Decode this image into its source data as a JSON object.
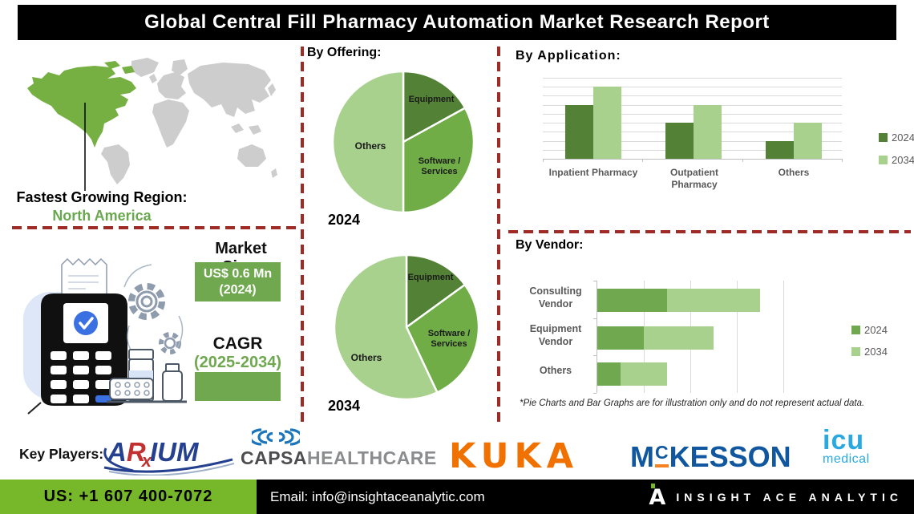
{
  "title": "Global Central Fill Pharmacy Automation Market Research Report",
  "region": {
    "label": "Fastest Growing Region:",
    "value": "North America"
  },
  "sections": {
    "offering": "By Offering:",
    "application": "By  Application:",
    "vendor": "By Vendor:"
  },
  "market_size": {
    "heading": "Market Size:",
    "value": "US$ 0.6 Mn",
    "value_year": "(2024)",
    "cagr_heading": "CAGR",
    "cagr_period": "(2025-2034)"
  },
  "chart_data": [
    {
      "type": "pie",
      "name": "by-offering-2024",
      "year_caption": "2024",
      "labels": [
        "Equipment",
        "Software / Services",
        "Others"
      ],
      "values": [
        17,
        33,
        50
      ],
      "colors": [
        "#538135",
        "#70AD47",
        "#A9D18E"
      ]
    },
    {
      "type": "pie",
      "name": "by-offering-2034",
      "year_caption": "2034",
      "labels": [
        "Equipment",
        "Software / Services",
        "Others"
      ],
      "values": [
        15,
        28,
        57
      ],
      "colors": [
        "#538135",
        "#70AD47",
        "#A9D18E"
      ]
    },
    {
      "type": "bar",
      "name": "by-application",
      "title": "By Application:",
      "categories": [
        "Inpatient Pharmacy",
        "Outpatient Pharmacy",
        "Others"
      ],
      "series": [
        {
          "name": "2024",
          "color": "#538135",
          "values": [
            6,
            4,
            2
          ]
        },
        {
          "name": "2034",
          "color": "#A9D18E",
          "values": [
            8,
            6,
            4
          ]
        }
      ],
      "ylim": [
        0,
        9
      ],
      "grid": true,
      "legend_position": "right"
    },
    {
      "type": "stacked-bar-horizontal",
      "name": "by-vendor",
      "title": "By Vendor:",
      "categories": [
        "Consulting Vendor",
        "Equipment Vendor",
        "Others"
      ],
      "series": [
        {
          "name": "2024",
          "color": "#6FA84F",
          "values": [
            30,
            20,
            10
          ]
        },
        {
          "name": "2034",
          "color": "#A9D18E",
          "values": [
            40,
            30,
            20
          ]
        }
      ],
      "xlim": [
        0,
        80
      ],
      "grid": true,
      "legend_position": "right"
    }
  ],
  "footnote": "*Pie Charts and Bar Graphs are for illustration only and do not represent actual data.",
  "key_players": {
    "label": "Key Players:",
    "arxium": {
      "p1": "A",
      "p2": "R",
      "p3": "x",
      "p4": "IUM"
    },
    "capsa": {
      "bold": "CAPSA",
      "light": "HEALTHCARE"
    },
    "kuka": "KUKA",
    "mckesson": {
      "m": "M",
      "c": "C",
      "rest": "KESSON"
    },
    "icu": {
      "line1": "icu",
      "line2": "medical"
    }
  },
  "footer": {
    "phone": "US: +1 607 400-7072",
    "email": "Email: info@insightaceanalytic.com",
    "brand": "INSIGHT ACE ANALYTIC"
  },
  "colors": {
    "accent_dark_green": "#538135",
    "accent_green": "#70AD47",
    "accent_light_green": "#A9D18E",
    "footer_green": "#76B82A",
    "divider_red": "#9E2B25",
    "map_highlight": "#76B043",
    "map_gray": "#CDCDCD"
  }
}
